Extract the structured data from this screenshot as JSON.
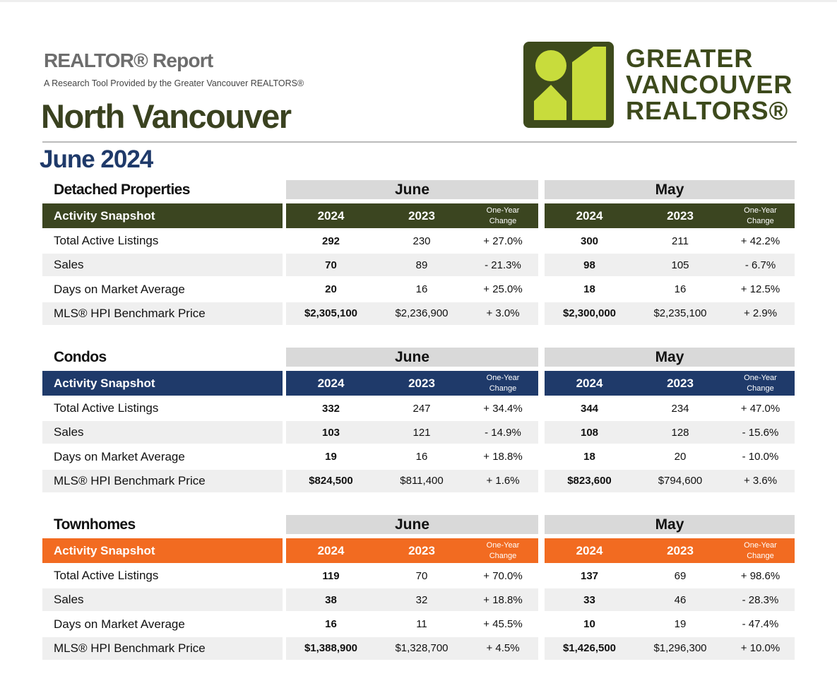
{
  "header": {
    "report_title": "REALTOR® Report",
    "subtitle": "A Research Tool Provided by the Greater Vancouver REALTORS®",
    "region": "North Vancouver",
    "period": "June 2024"
  },
  "logo": {
    "lines": [
      "GREATER",
      "VANCOUVER",
      "REALTORS®"
    ]
  },
  "sections": [
    {
      "name": "Detached Properties",
      "color": "#3b4520",
      "periods": [
        "June",
        "May"
      ],
      "snapshot": "Activity Snapshot",
      "columns": [
        "2024",
        "2023",
        "One-Year Change",
        "2024",
        "2023",
        "One-Year Change"
      ],
      "rows": [
        {
          "label": "Total Active Listings",
          "values": [
            "292",
            "230",
            "+ 27.0%",
            "300",
            "211",
            "+ 42.2%"
          ]
        },
        {
          "label": "Sales",
          "values": [
            "70",
            "89",
            "- 21.3%",
            "98",
            "105",
            "- 6.7%"
          ]
        },
        {
          "label": "Days on Market Average",
          "values": [
            "20",
            "16",
            "+ 25.0%",
            "18",
            "16",
            "+ 12.5%"
          ]
        },
        {
          "label": "MLS® HPI Benchmark Price",
          "values": [
            "$2,305,100",
            "$2,236,900",
            "+ 3.0%",
            "$2,300,000",
            "$2,235,100",
            "+ 2.9%"
          ]
        }
      ]
    },
    {
      "name": "Condos",
      "color": "#1f3a6a",
      "periods": [
        "June",
        "May"
      ],
      "snapshot": "Activity Snapshot",
      "columns": [
        "2024",
        "2023",
        "One-Year Change",
        "2024",
        "2023",
        "One-Year Change"
      ],
      "rows": [
        {
          "label": "Total Active Listings",
          "values": [
            "332",
            "247",
            "+ 34.4%",
            "344",
            "234",
            "+ 47.0%"
          ]
        },
        {
          "label": "Sales",
          "values": [
            "103",
            "121",
            "- 14.9%",
            "108",
            "128",
            "- 15.6%"
          ]
        },
        {
          "label": "Days on Market Average",
          "values": [
            "19",
            "16",
            "+ 18.8%",
            "18",
            "20",
            "- 10.0%"
          ]
        },
        {
          "label": "MLS® HPI Benchmark Price",
          "values": [
            "$824,500",
            "$811,400",
            "+ 1.6%",
            "$823,600",
            "$794,600",
            "+ 3.6%"
          ]
        }
      ]
    },
    {
      "name": "Townhomes",
      "color": "#f26b21",
      "periods": [
        "June",
        "May"
      ],
      "snapshot": "Activity Snapshot",
      "columns": [
        "2024",
        "2023",
        "One-Year Change",
        "2024",
        "2023",
        "One-Year Change"
      ],
      "rows": [
        {
          "label": "Total Active Listings",
          "values": [
            "119",
            "70",
            "+ 70.0%",
            "137",
            "69",
            "+ 98.6%"
          ]
        },
        {
          "label": "Sales",
          "values": [
            "38",
            "32",
            "+ 18.8%",
            "33",
            "46",
            "- 28.3%"
          ]
        },
        {
          "label": "Days on Market Average",
          "values": [
            "16",
            "11",
            "+ 45.5%",
            "10",
            "19",
            "- 47.4%"
          ]
        },
        {
          "label": "MLS® HPI Benchmark Price",
          "values": [
            "$1,388,900",
            "$1,328,700",
            "+ 4.5%",
            "$1,426,500",
            "$1,296,300",
            "+ 10.0%"
          ]
        }
      ]
    }
  ]
}
